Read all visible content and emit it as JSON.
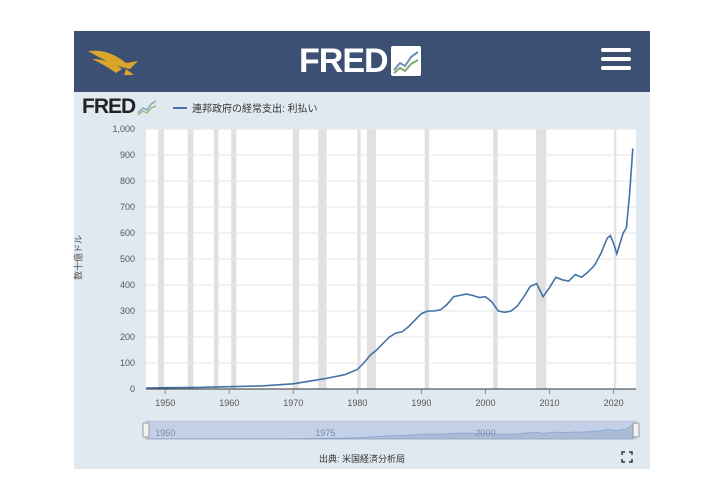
{
  "header": {
    "brand": "FRED",
    "menu_icon": "hamburger-menu-icon",
    "logo_icon": "eagle-logo-icon"
  },
  "chart_header": {
    "brand": "FRED"
  },
  "source_label": "出典: 米国経済分析局",
  "fullscreen_icon": "fullscreen-icon",
  "colors": {
    "topbar": "#3b5072",
    "background": "#e1e9f0",
    "series": "#4572a7",
    "recession": "#e0e0e0",
    "navigator_fill": "#b9c8e3"
  },
  "chart_data": {
    "type": "line",
    "title": "",
    "xlabel": "",
    "ylabel": "数十億ドル",
    "xlim": [
      1947,
      2023.5
    ],
    "ylim": [
      0,
      1000
    ],
    "yticks": [
      0,
      100,
      200,
      300,
      400,
      500,
      600,
      700,
      800,
      900,
      1000
    ],
    "ytick_labels": [
      "0",
      "100",
      "200",
      "300",
      "400",
      "500",
      "600",
      "700",
      "800",
      "900",
      "1,000"
    ],
    "xticks": [
      1950,
      1960,
      1970,
      1980,
      1990,
      2000,
      2010,
      2020
    ],
    "xtick_labels": [
      "1950",
      "1960",
      "1970",
      "1980",
      "1990",
      "2000",
      "2010",
      "2020"
    ],
    "grid": true,
    "legend": "top-left",
    "recessions": [
      [
        1948.9,
        1949.8
      ],
      [
        1953.5,
        1954.4
      ],
      [
        1957.6,
        1958.3
      ],
      [
        1960.3,
        1961.1
      ],
      [
        1969.9,
        1970.9
      ],
      [
        1973.9,
        1975.2
      ],
      [
        1980.0,
        1980.5
      ],
      [
        1981.5,
        1982.9
      ],
      [
        1990.5,
        1991.2
      ],
      [
        2001.2,
        2001.9
      ],
      [
        2007.9,
        2009.5
      ],
      [
        2020.1,
        2020.4
      ]
    ],
    "navigator": {
      "tick_labels": [
        "1950",
        "1975",
        "2000"
      ],
      "tick_values": [
        1950,
        1975,
        2000
      ]
    },
    "series": [
      {
        "name": "連邦政府の経常支出: 利払い",
        "x": [
          1947,
          1950,
          1955,
          1960,
          1965,
          1970,
          1972,
          1975,
          1978,
          1980,
          1981,
          1982,
          1983,
          1984,
          1985,
          1986,
          1987,
          1988,
          1989,
          1990,
          1991,
          1992,
          1993,
          1994,
          1995,
          1996,
          1997,
          1998,
          1999,
          2000,
          2001,
          2002,
          2003,
          2004,
          2005,
          2006,
          2007,
          2008,
          2009,
          2010,
          2011,
          2012,
          2013,
          2014,
          2015,
          2016,
          2017,
          2018,
          2019,
          2019.5,
          2020,
          2020.5,
          2021,
          2021.5,
          2022,
          2022.5,
          2023
        ],
        "y": [
          4,
          5,
          6,
          9,
          12,
          20,
          28,
          40,
          55,
          75,
          100,
          130,
          150,
          175,
          200,
          215,
          220,
          240,
          265,
          290,
          300,
          300,
          305,
          325,
          355,
          360,
          365,
          360,
          352,
          355,
          335,
          300,
          295,
          300,
          320,
          355,
          395,
          405,
          355,
          390,
          430,
          420,
          415,
          440,
          430,
          450,
          475,
          520,
          580,
          590,
          560,
          520,
          560,
          600,
          620,
          750,
          925
        ]
      }
    ]
  }
}
